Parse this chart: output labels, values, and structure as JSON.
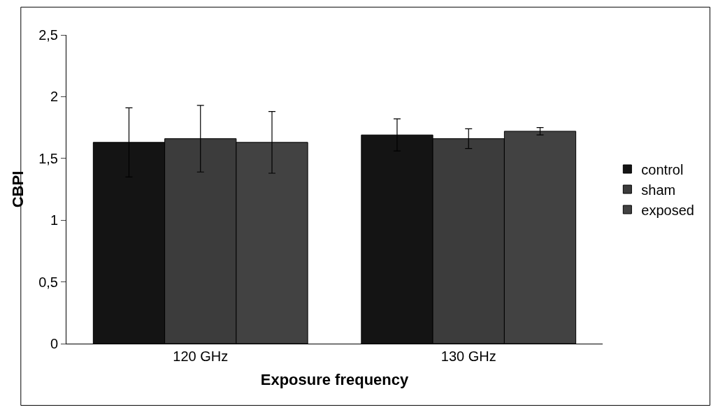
{
  "chart_data": {
    "type": "bar",
    "xlabel": "Exposure frequency",
    "ylabel": "CBPI",
    "categories": [
      "120 GHz",
      "130 GHz"
    ],
    "series": [
      {
        "name": "control",
        "color": "#141414",
        "values": [
          1.63,
          1.69
        ],
        "errors": [
          0.28,
          0.13
        ]
      },
      {
        "name": "sham",
        "color": "#3c3c3c",
        "values": [
          1.66,
          1.66
        ],
        "errors": [
          0.27,
          0.08
        ]
      },
      {
        "name": "exposed",
        "color": "#424242",
        "values": [
          1.63,
          1.72
        ],
        "errors": [
          0.25,
          0.03
        ]
      }
    ],
    "ylim": [
      0,
      2.5
    ],
    "yticks": [
      0,
      {
        "value": 0.5,
        "label": "0,5"
      },
      1,
      {
        "value": 1.5,
        "label": "1,5"
      },
      2,
      {
        "value": 2.5,
        "label": "2,5"
      }
    ],
    "legend": "right"
  }
}
